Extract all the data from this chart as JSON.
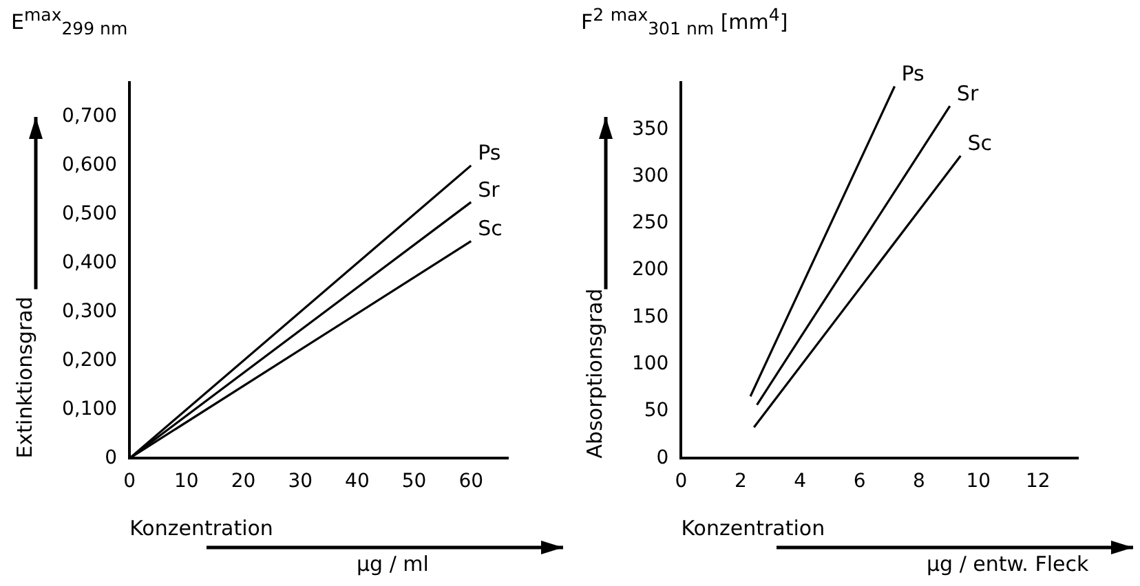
{
  "chart_data": [
    {
      "type": "line",
      "ylabel": "Extinktionsgrad",
      "xlabel": "Konzentration",
      "annotations": [
        "E$^{max}$$_{299 nm}$",
        "µg / ml"
      ],
      "marker": "none",
      "grid": false,
      "legend": false,
      "xlim": [
        0,
        66.5
      ],
      "ylim": [
        0,
        0.77
      ],
      "xticks": [
        0,
        10,
        20,
        30,
        40,
        50,
        60
      ],
      "yticks": [
        0,
        {
          "value": 0.1,
          "label": "0,100"
        },
        {
          "value": 0.2,
          "label": "0,200"
        },
        {
          "value": 0.3,
          "label": "0,300"
        },
        {
          "value": 0.4,
          "label": "0,400"
        },
        {
          "value": 0.5,
          "label": "0,500"
        },
        {
          "value": 0.6,
          "label": "0,600"
        },
        {
          "value": 0.7,
          "label": "0,700"
        }
      ],
      "series": [
        {
          "name": "Ps",
          "color": "#000000",
          "x": [
            0,
            60
          ],
          "values": [
            0,
            0.6
          ]
        },
        {
          "name": "Sr",
          "color": "#000000",
          "x": [
            0,
            60
          ],
          "values": [
            0,
            0.525
          ]
        },
        {
          "name": "Sc",
          "color": "#000000",
          "x": [
            0,
            60
          ],
          "values": [
            0,
            0.445
          ]
        }
      ]
    },
    {
      "type": "line",
      "ylabel": "Absorptionsgrad",
      "xlabel": "Konzentration",
      "annotations": [
        "F$^{2}$ $^{max}$$_{301 nm}$ [mm$^{4}$]",
        "µg / entw. Fleck"
      ],
      "marker": "none",
      "grid": false,
      "legend": false,
      "xlim": [
        0,
        13.35
      ],
      "ylim": [
        0,
        400
      ],
      "xticks": [
        0,
        2,
        4,
        6,
        8,
        10,
        12
      ],
      "yticks": [
        0,
        50,
        100,
        150,
        200,
        250,
        300,
        350
      ],
      "series": [
        {
          "name": "Ps",
          "color": "#000000",
          "x": [
            2.33,
            7.18
          ],
          "values": [
            66,
            396
          ]
        },
        {
          "name": "Sr",
          "color": "#000000",
          "x": [
            2.55,
            9.04
          ],
          "values": [
            57,
            375
          ]
        },
        {
          "name": "Sc",
          "color": "#000000",
          "x": [
            2.45,
            9.4
          ],
          "values": [
            33,
            322
          ]
        }
      ]
    }
  ]
}
